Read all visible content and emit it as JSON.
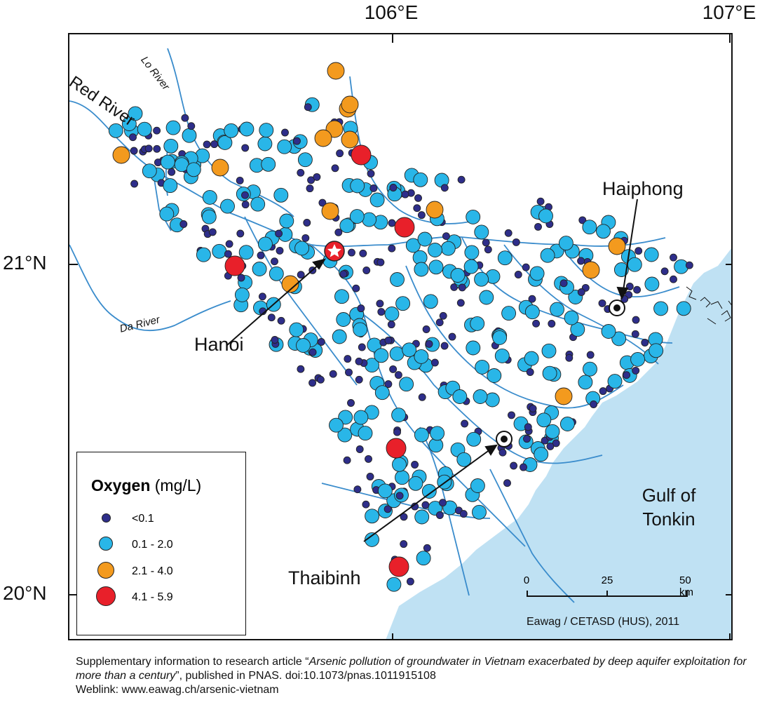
{
  "axes": {
    "lon_labels": [
      "106°E",
      "107°E"
    ],
    "lat_labels": [
      "21°N",
      "20°N"
    ]
  },
  "rivers": {
    "red_river": "Red River",
    "lo_river": "Lo River",
    "da_river": "Da River"
  },
  "cities": {
    "hanoi": "Hanoi",
    "haiphong": "Haiphong",
    "thaibinh": "Thaibinh"
  },
  "sea_label_line1": "Gulf of",
  "sea_label_line2": "Tonkin",
  "legend": {
    "title": "Oxygen",
    "unit": "(mg/L)",
    "classes": [
      {
        "label": "<0.1",
        "color": "#2e2e8a"
      },
      {
        "label": "0.1 - 2.0",
        "color": "#29b6e8"
      },
      {
        "label": "2.1 - 4.0",
        "color": "#f39a1e"
      },
      {
        "label": "4.1 - 5.9",
        "color": "#e8202a"
      }
    ]
  },
  "scale": {
    "ticks": [
      "0",
      "25",
      "50 km"
    ]
  },
  "credit": "Eawag / CETASD (HUS), 2011",
  "colors": {
    "sea": "#bfe1f3",
    "river": "#3a8ccc"
  },
  "caption": {
    "prefix": "Supplementary information to research article “",
    "title": "Arsenic pollution of groundwater in Vietnam exacerbated by deep aquifer exploitation for more than a century",
    "suffix": "”, published in PNAS. doi:10.1073/pnas.1011915108",
    "weblink": "Weblink: www.eawag.ch/arsenic-vietnam"
  }
}
